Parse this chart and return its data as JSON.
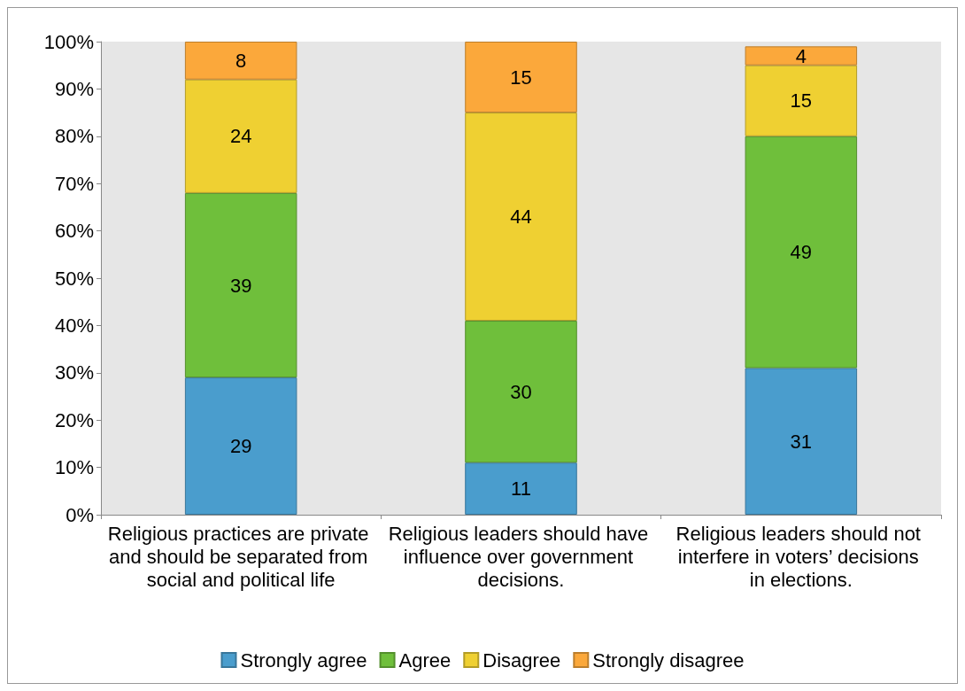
{
  "chart_data": {
    "type": "bar",
    "stacked": true,
    "categories": [
      "Religious practices are private and should be separated from social and political life",
      "Religious leaders should have influence over government decisions.",
      "Religious leaders should not interfere in voters’ decisions in elections."
    ],
    "series": [
      {
        "name": "Strongly agree",
        "color": "#4a9dcd",
        "values": [
          29,
          11,
          31
        ]
      },
      {
        "name": "Agree",
        "color": "#6fbf3b",
        "values": [
          39,
          30,
          49
        ]
      },
      {
        "name": "Disagree",
        "color": "#efd032",
        "values": [
          24,
          44,
          15
        ]
      },
      {
        "name": "Strongly disagree",
        "color": "#fba83b",
        "values": [
          8,
          15,
          4
        ]
      }
    ],
    "ylim": [
      0,
      100
    ],
    "yticks": [
      {
        "value": 0,
        "label": "0%"
      },
      {
        "value": 10,
        "label": "10%"
      },
      {
        "value": 20,
        "label": "20%"
      },
      {
        "value": 30,
        "label": "30%"
      },
      {
        "value": 40,
        "label": "40%"
      },
      {
        "value": 50,
        "label": "50%"
      },
      {
        "value": 60,
        "label": "60%"
      },
      {
        "value": 70,
        "label": "70%"
      },
      {
        "value": 80,
        "label": "80%"
      },
      {
        "value": 90,
        "label": "90%"
      },
      {
        "value": 100,
        "label": "100%"
      }
    ],
    "data_labels": true,
    "grid": false,
    "legend": "bottom"
  }
}
